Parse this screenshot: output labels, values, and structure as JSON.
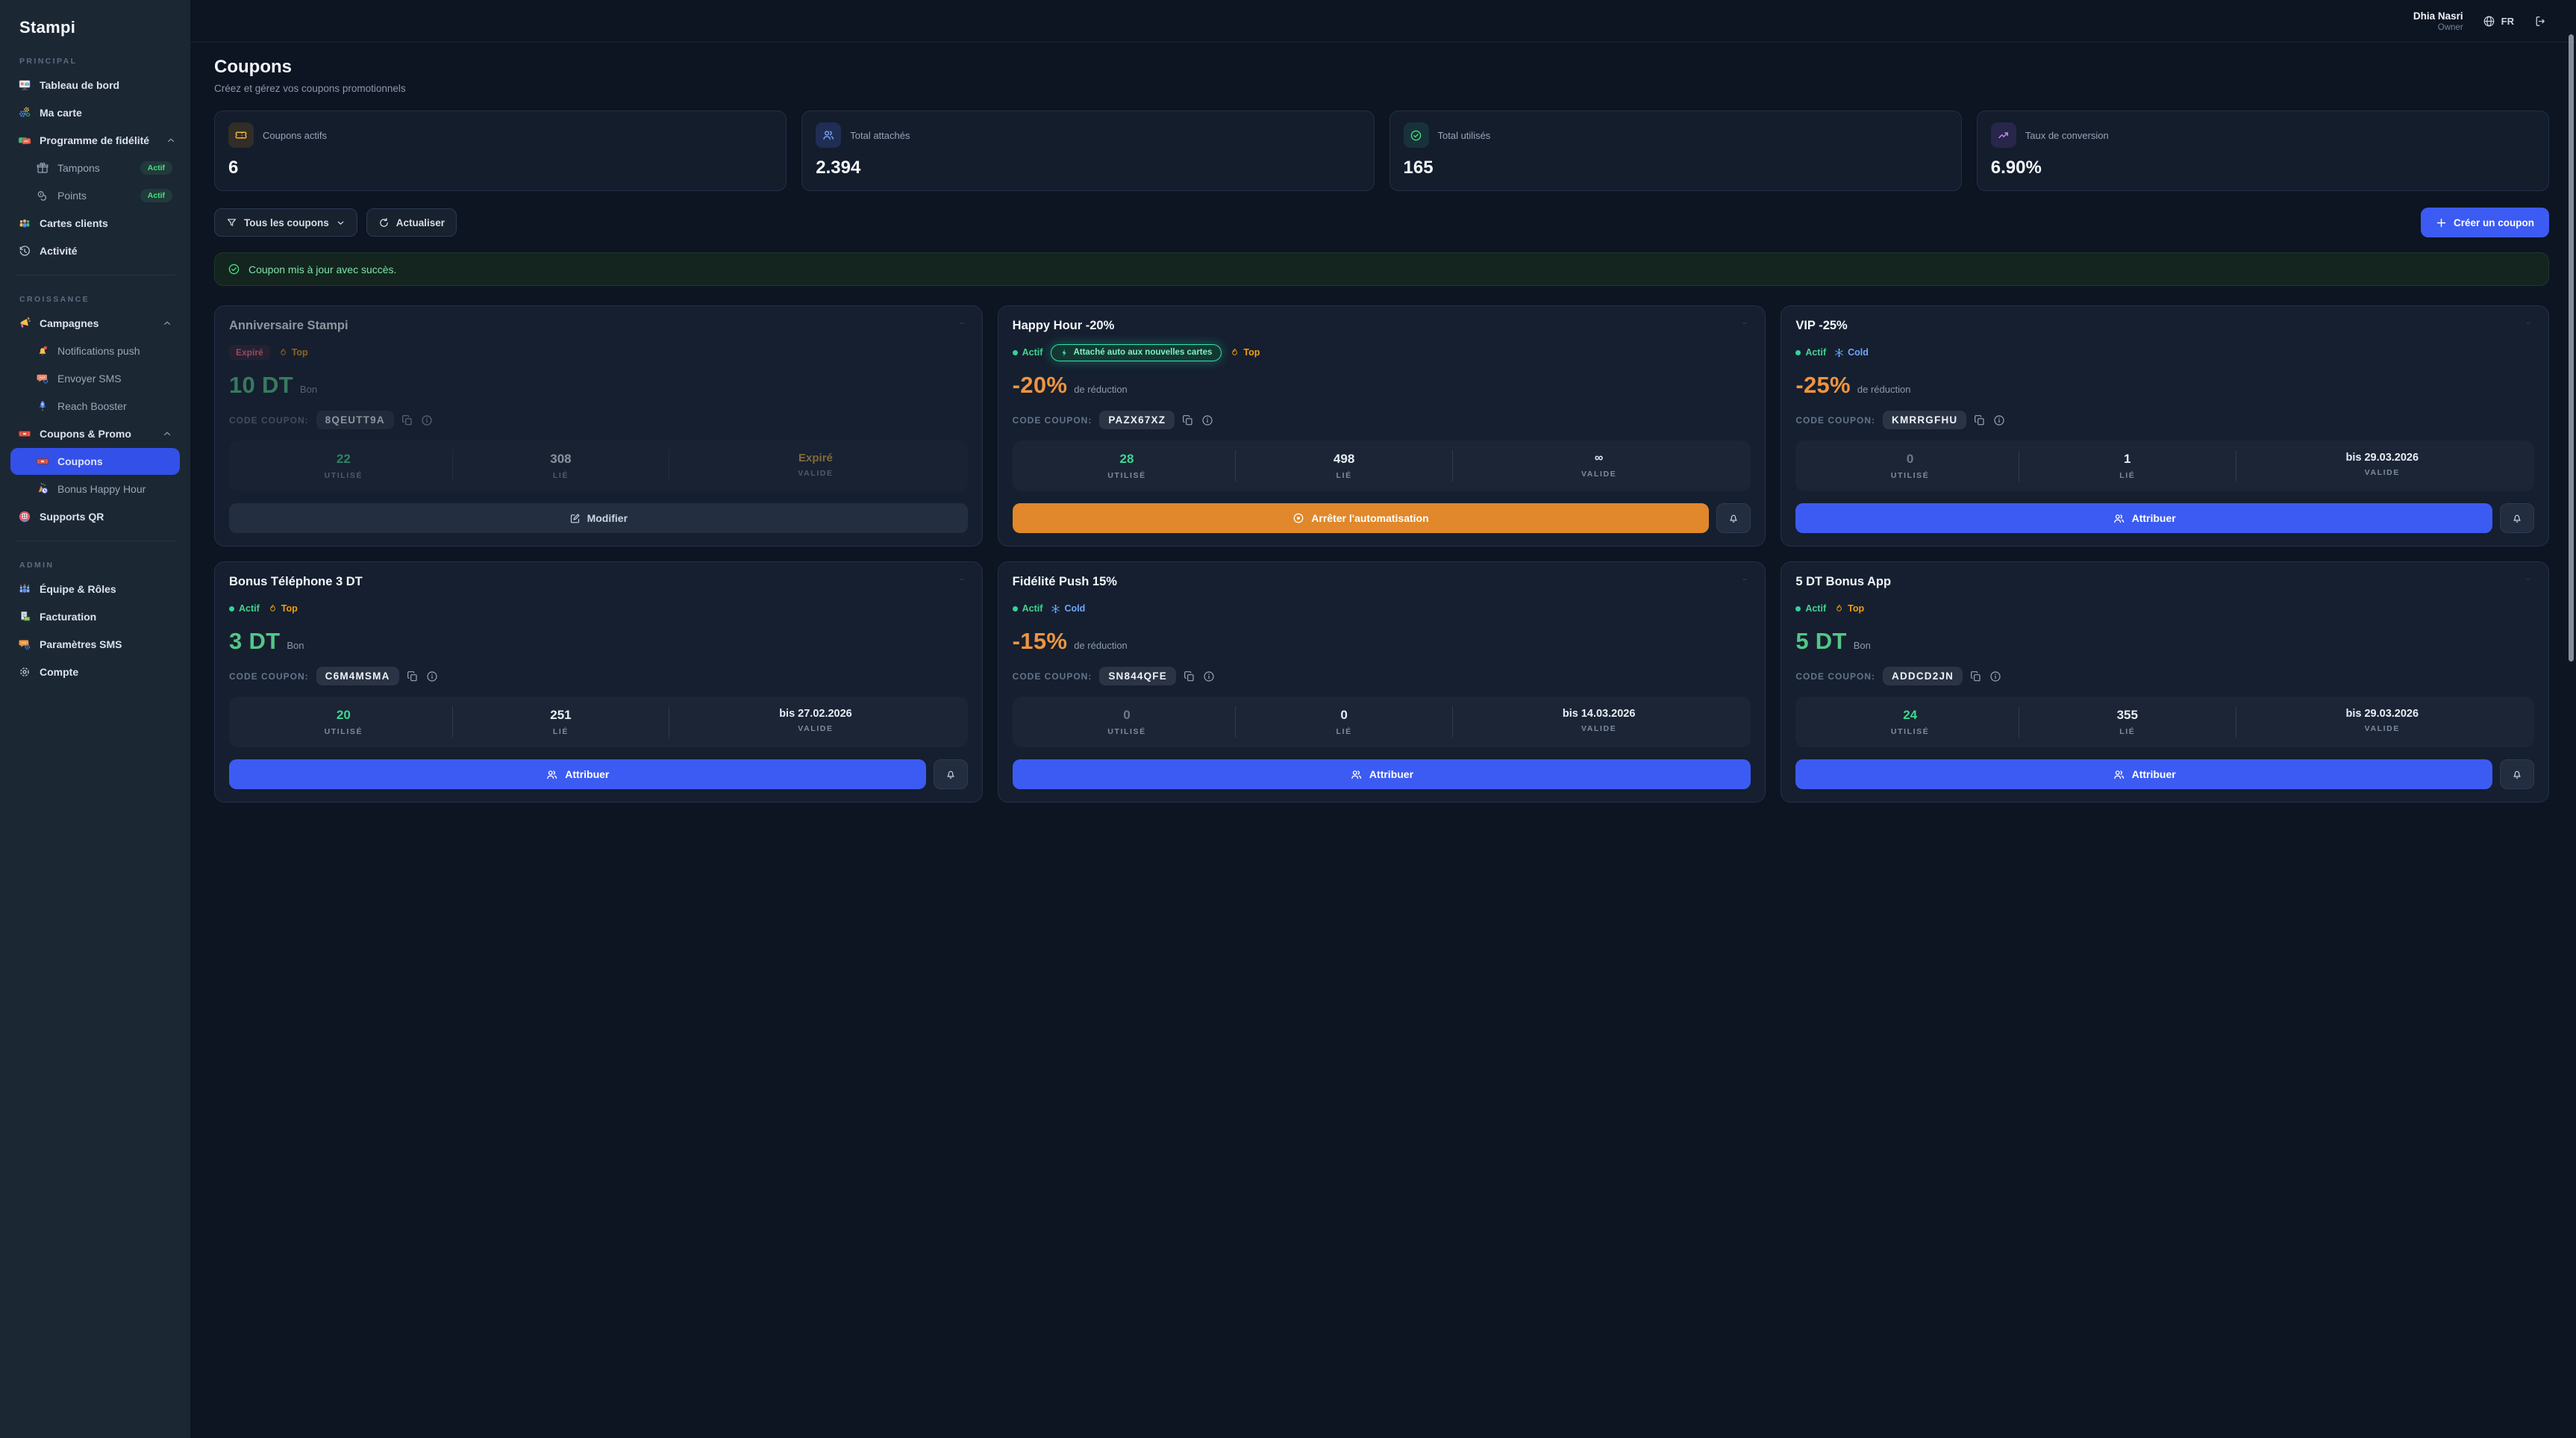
{
  "app": {
    "brand": "Stampi"
  },
  "header": {
    "user_name": "Dhia Nasri",
    "user_role": "Owner",
    "language": "FR"
  },
  "sidebar": {
    "sections": [
      {
        "label": "PRINCIPAL",
        "items": [
          {
            "label": "Tableau de bord",
            "icon": "dashboard-icon"
          },
          {
            "label": "Ma carte",
            "icon": "gears-icon"
          },
          {
            "label": "Programme de fidélité",
            "icon": "loyalty-cards-icon",
            "chevron": "up"
          },
          {
            "label": "Tampons",
            "icon": "gift-icon",
            "sub": true,
            "badge": "Actif"
          },
          {
            "label": "Points",
            "icon": "coins-icon",
            "sub": true,
            "badge": "Actif"
          },
          {
            "label": "Cartes clients",
            "icon": "customers-icon"
          },
          {
            "label": "Activité",
            "icon": "history-icon"
          }
        ]
      },
      {
        "label": "CROISSANCE",
        "items": [
          {
            "label": "Campagnes",
            "icon": "megaphone-icon",
            "chevron": "up"
          },
          {
            "label": "Notifications push",
            "icon": "push-bell-icon",
            "sub": true
          },
          {
            "label": "Envoyer SMS",
            "icon": "sms-icon",
            "sub": true
          },
          {
            "label": "Reach Booster",
            "icon": "rocket-icon",
            "sub": true
          },
          {
            "label": "Coupons & Promo",
            "icon": "ticket-color-icon",
            "chevron": "up"
          },
          {
            "label": "Coupons",
            "icon": "ticket-color-icon",
            "sub": true,
            "active": true
          },
          {
            "label": "Bonus Happy Hour",
            "icon": "party-clock-icon",
            "sub": true
          },
          {
            "label": "Supports QR",
            "icon": "qr-icon"
          }
        ]
      },
      {
        "label": "ADMIN",
        "items": [
          {
            "label": "Équipe & Rôles",
            "icon": "team-icon"
          },
          {
            "label": "Facturation",
            "icon": "invoice-icon"
          },
          {
            "label": "Paramètres SMS",
            "icon": "sms-gear-icon"
          },
          {
            "label": "Compte",
            "icon": "gear-icon"
          }
        ]
      }
    ]
  },
  "page": {
    "title": "Coupons",
    "subtitle": "Créez et gérez vos coupons promotionnels"
  },
  "stats": [
    {
      "label": "Coupons actifs",
      "value": "6",
      "icon": "ticket-outline-icon",
      "tone": "amber"
    },
    {
      "label": "Total attachés",
      "value": "2.394",
      "icon": "users-outline-icon",
      "tone": "blue"
    },
    {
      "label": "Total utilisés",
      "value": "165",
      "icon": "check-circle-icon",
      "tone": "green"
    },
    {
      "label": "Taux de conversion",
      "value": "6.90%",
      "icon": "trend-up-icon",
      "tone": "purple"
    }
  ],
  "toolbar": {
    "filter_label": "Tous les coupons",
    "refresh_label": "Actualiser",
    "create_label": "Créer un coupon"
  },
  "alert": {
    "message": "Coupon mis à jour avec succès."
  },
  "coupon_labels": {
    "code": "CODE COUPON:",
    "used": "UTILISÉ",
    "linked": "LIÉ",
    "valid": "VALIDE"
  },
  "coupons": [
    {
      "title": "Anniversaire Stampi",
      "dimmed": true,
      "badges": [
        {
          "type": "expired",
          "label": "Expiré"
        },
        {
          "type": "top",
          "label": "Top"
        }
      ],
      "value": {
        "amount": "10 DT",
        "suffix": "Bon",
        "color": "green"
      },
      "code": "8QEUTT9A",
      "stats": {
        "used": "22",
        "used_tone": "green",
        "linked": "308",
        "valid": "Expiré",
        "valid_style": "amber"
      },
      "action": {
        "kind": "modifier",
        "label": "Modifier"
      },
      "bell": false
    },
    {
      "title": "Happy Hour -20%",
      "dimmed": false,
      "badges": [
        {
          "type": "active",
          "label": "Actif"
        },
        {
          "type": "auto",
          "label": "Attaché auto aux nouvelles cartes"
        },
        {
          "type": "top",
          "label": "Top"
        }
      ],
      "value": {
        "amount": "-20%",
        "suffix": "de réduction",
        "color": "orange"
      },
      "code": "PAZX67XZ",
      "stats": {
        "used": "28",
        "used_tone": "green",
        "linked": "498",
        "valid": "∞",
        "valid_style": "inf"
      },
      "action": {
        "kind": "stop",
        "label": "Arrêter l'automatisation"
      },
      "bell": true
    },
    {
      "title": "VIP -25%",
      "dimmed": false,
      "badges": [
        {
          "type": "active",
          "label": "Actif"
        },
        {
          "type": "cold",
          "label": "Cold"
        }
      ],
      "value": {
        "amount": "-25%",
        "suffix": "de réduction",
        "color": "orange"
      },
      "code": "KMRRGFHU",
      "stats": {
        "used": "0",
        "used_tone": "muted",
        "linked": "1",
        "valid": "bis 29.03.2026",
        "valid_style": "date"
      },
      "action": {
        "kind": "attribuer",
        "label": "Attribuer"
      },
      "bell": true
    },
    {
      "title": "Bonus Téléphone 3 DT",
      "dimmed": false,
      "badges": [
        {
          "type": "active",
          "label": "Actif"
        },
        {
          "type": "top",
          "label": "Top"
        }
      ],
      "value": {
        "amount": "3 DT",
        "suffix": "Bon",
        "color": "green"
      },
      "code": "C6M4MSMA",
      "stats": {
        "used": "20",
        "used_tone": "green",
        "linked": "251",
        "valid": "bis 27.02.2026",
        "valid_style": "date"
      },
      "action": {
        "kind": "attribuer",
        "label": "Attribuer"
      },
      "bell": true
    },
    {
      "title": "Fidélité Push 15%",
      "dimmed": false,
      "badges": [
        {
          "type": "active",
          "label": "Actif"
        },
        {
          "type": "cold",
          "label": "Cold"
        }
      ],
      "value": {
        "amount": "-15%",
        "suffix": "de réduction",
        "color": "orange"
      },
      "code": "SN844QFE",
      "stats": {
        "used": "0",
        "used_tone": "muted",
        "linked": "0",
        "valid": "bis 14.03.2026",
        "valid_style": "date"
      },
      "action": {
        "kind": "attribuer",
        "label": "Attribuer"
      },
      "bell": false
    },
    {
      "title": "5 DT Bonus App",
      "dimmed": false,
      "badges": [
        {
          "type": "active",
          "label": "Actif"
        },
        {
          "type": "top",
          "label": "Top"
        }
      ],
      "value": {
        "amount": "5 DT",
        "suffix": "Bon",
        "color": "green"
      },
      "code": "ADDCD2JN",
      "stats": {
        "used": "24",
        "used_tone": "green",
        "linked": "355",
        "valid": "bis 29.03.2026",
        "valid_style": "date"
      },
      "action": {
        "kind": "attribuer",
        "label": "Attribuer"
      },
      "bell": true
    }
  ]
}
